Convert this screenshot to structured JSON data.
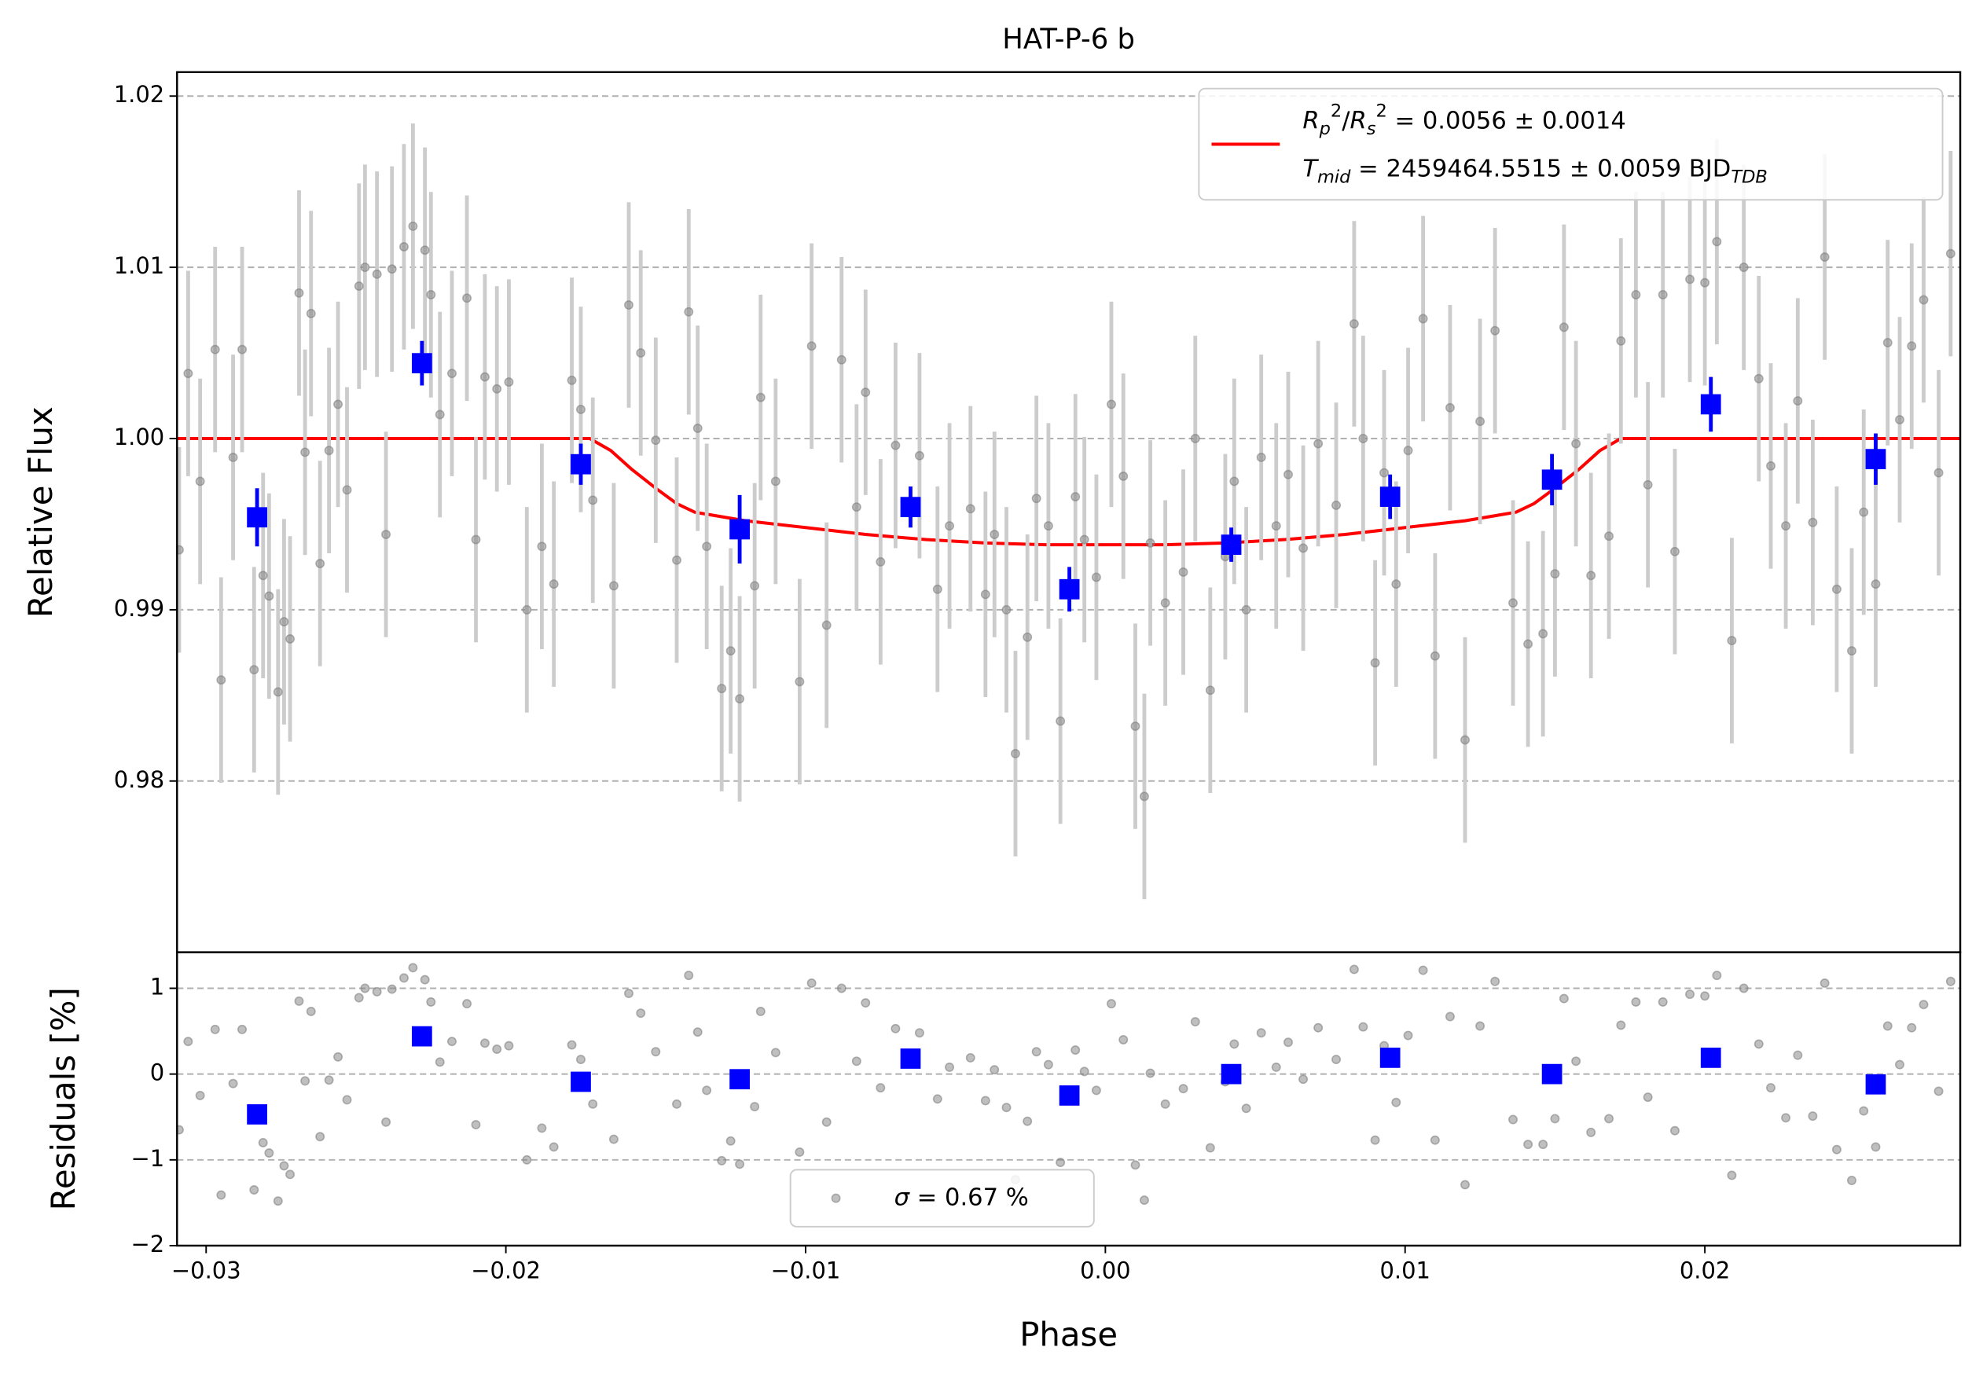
{
  "chart_data": [
    {
      "type": "errorbar",
      "title": "HAT-P-6 b",
      "ylabel": "Relative Flux",
      "xlim": [
        -0.03097,
        0.02852
      ],
      "ylim": [
        0.97,
        1.0214
      ],
      "yticks": [
        0.98,
        0.99,
        {
          "value": 1.0,
          "label": "1.00"
        },
        1.01,
        1.02
      ],
      "grid": true,
      "legend": "upper right",
      "series": [
        {
          "type": "line",
          "color": "#ff0000",
          "name": [
            [
              {
                "text": "R",
                "style": "i"
              },
              {
                "text": "p",
                "style": "si"
              },
              {
                "text": "2",
                "style": "sup"
              },
              {
                "text": "/",
                "style": "n"
              },
              {
                "text": "R",
                "style": "i"
              },
              {
                "text": "s",
                "style": "si"
              },
              {
                "text": "2",
                "style": "sup"
              },
              {
                "text": " = 0.0056 ± 0.0014",
                "style": "n"
              }
            ],
            [
              {
                "text": "T",
                "style": "i"
              },
              {
                "text": "mid",
                "style": "si"
              },
              {
                "text": " = 2459464.5515 ± 0.0059 BJD",
                "style": "n"
              },
              {
                "text": "TDB",
                "style": "si"
              }
            ]
          ],
          "x": [
            -0.031,
            -0.0172,
            -0.0165,
            -0.0158,
            -0.015,
            -0.0143,
            -0.0137,
            -0.012,
            -0.01,
            -0.008,
            -0.006,
            -0.004,
            -0.002,
            0.0,
            0.002,
            0.004,
            0.006,
            0.008,
            0.01,
            0.012,
            0.0137,
            0.0143,
            0.015,
            0.0158,
            0.0165,
            0.0172,
            0.0286
          ],
          "values": [
            1.0,
            1.0,
            0.9993,
            0.9982,
            0.9971,
            0.9962,
            0.9957,
            0.9952,
            0.9948,
            0.9944,
            0.9941,
            0.9939,
            0.9938,
            0.9938,
            0.9938,
            0.9939,
            0.9941,
            0.9944,
            0.9948,
            0.9952,
            0.9957,
            0.9962,
            0.9971,
            0.9982,
            0.9993,
            1.0,
            1.0
          ]
        },
        {
          "type": "points",
          "color": "#808080",
          "error": 0.006,
          "x": [
            -0.0309,
            -0.0306,
            -0.0302,
            -0.0297,
            -0.0295,
            -0.0291,
            -0.0288,
            -0.0284,
            -0.0281,
            -0.0279,
            -0.0276,
            -0.0274,
            -0.0272,
            -0.0269,
            -0.0267,
            -0.0265,
            -0.0262,
            -0.0259,
            -0.0256,
            -0.0253,
            -0.0249,
            -0.0247,
            -0.0243,
            -0.024,
            -0.0238,
            -0.0234,
            -0.0231,
            -0.0227,
            -0.0225,
            -0.0222,
            -0.0218,
            -0.0213,
            -0.021,
            -0.0207,
            -0.0203,
            -0.0199,
            -0.0193,
            -0.0188,
            -0.0184,
            -0.0178,
            -0.0175,
            -0.0171,
            -0.0164,
            -0.0159,
            -0.0155,
            -0.015,
            -0.0143,
            -0.0139,
            -0.0136,
            -0.0133,
            -0.0128,
            -0.0125,
            -0.0122,
            -0.0117,
            -0.0115,
            -0.011,
            -0.0102,
            -0.0098,
            -0.0093,
            -0.0088,
            -0.0083,
            -0.008,
            -0.0075,
            -0.007,
            -0.0062,
            -0.0056,
            -0.0052,
            -0.0045,
            -0.004,
            -0.0037,
            -0.0033,
            -0.003,
            -0.0026,
            -0.0023,
            -0.0019,
            -0.0015,
            -0.001,
            -0.0007,
            -0.0003,
            0.0002,
            0.0006,
            0.001,
            0.0013,
            0.0015,
            0.002,
            0.0026,
            0.003,
            0.0035,
            0.004,
            0.0043,
            0.0047,
            0.0052,
            0.0057,
            0.0061,
            0.0066,
            0.0071,
            0.0077,
            0.0083,
            0.0086,
            0.009,
            0.0093,
            0.0097,
            0.0101,
            0.0106,
            0.011,
            0.0115,
            0.012,
            0.0125,
            0.013,
            0.0136,
            0.0141,
            0.0146,
            0.015,
            0.0153,
            0.0157,
            0.0162,
            0.0168,
            0.0172,
            0.0177,
            0.0181,
            0.0186,
            0.019,
            0.0195,
            0.02,
            0.0204,
            0.0209,
            0.0213,
            0.0218,
            0.0222,
            0.0227,
            0.0231,
            0.0236,
            0.024,
            0.0244,
            0.0249,
            0.0253,
            0.0257,
            0.0261,
            0.0265,
            0.0269,
            0.0273,
            0.0278,
            0.0282
          ],
          "values": [
            0.9935,
            1.0038,
            0.9975,
            1.0052,
            0.9859,
            0.9989,
            1.0052,
            0.9865,
            0.992,
            0.9908,
            0.9852,
            0.9893,
            0.9883,
            1.0085,
            0.9992,
            1.0073,
            0.9927,
            0.9993,
            1.002,
            0.997,
            1.0089,
            1.01,
            1.0096,
            0.9944,
            1.0099,
            1.0112,
            1.0124,
            1.011,
            1.0084,
            1.0014,
            1.0038,
            1.0082,
            0.9941,
            1.0036,
            1.0029,
            1.0033,
            0.99,
            0.9937,
            0.9915,
            1.0034,
            1.0017,
            0.9964,
            0.9914,
            1.0078,
            1.005,
            0.9999,
            0.9929,
            1.0074,
            1.0006,
            0.9937,
            0.9854,
            0.9876,
            0.9848,
            0.9914,
            1.0024,
            0.9975,
            0.9858,
            1.0054,
            0.9891,
            1.0046,
            0.996,
            1.0027,
            0.9928,
            0.9996,
            0.999,
            0.9912,
            0.9949,
            0.9959,
            0.9909,
            0.9944,
            0.99,
            0.9816,
            0.9884,
            0.9965,
            0.9949,
            0.9835,
            0.9966,
            0.9941,
            0.9919,
            1.002,
            0.9978,
            0.9832,
            0.9791,
            0.9939,
            0.9904,
            0.9922,
            1.0,
            0.9853,
            0.9931,
            0.9975,
            0.99,
            0.9989,
            0.9949,
            0.9979,
            0.9936,
            0.9997,
            0.9961,
            1.0067,
            1.0,
            0.9869,
            0.998,
            0.9915,
            0.9993,
            1.007,
            0.9873,
            1.0018,
            0.9824,
            1.001,
            1.0063,
            0.9904,
            0.988,
            0.9886,
            0.9921,
            1.0065,
            0.9997,
            0.992,
            0.9943,
            1.0057,
            1.0084,
            0.9973,
            1.0084,
            0.9934,
            1.0093,
            1.0091,
            1.0115,
            0.9882,
            1.01,
            1.0035,
            0.9984,
            0.9949,
            1.0022,
            0.9951,
            1.0106,
            0.9912,
            0.9876,
            0.9957,
            0.9915,
            1.0056,
            1.0011,
            1.0054,
            1.0081,
            0.998,
            1.0108
          ]
        },
        {
          "type": "binned",
          "color": "#0000ff",
          "x": [
            -0.0283,
            -0.0228,
            -0.0175,
            -0.0122,
            -0.0065,
            -0.0012,
            0.0042,
            0.0095,
            0.0149,
            0.0202,
            0.0257
          ],
          "values": [
            0.9954,
            1.0044,
            0.9985,
            0.9947,
            0.996,
            0.9912,
            0.9938,
            0.9966,
            0.9976,
            1.002,
            0.9988
          ],
          "errors": [
            0.0017,
            0.0013,
            0.0012,
            0.002,
            0.0012,
            0.0013,
            0.001,
            0.0013,
            0.0015,
            0.0016,
            0.0015
          ]
        }
      ]
    },
    {
      "type": "scatter",
      "ylabel": "Residuals [%]",
      "xlabel": "Phase",
      "xlim": [
        -0.03097,
        0.02852
      ],
      "ylim": [
        -2,
        1.42
      ],
      "xticks": [
        {
          "value": -0.03,
          "label": "−0.03"
        },
        {
          "value": -0.02,
          "label": "−0.02"
        },
        {
          "value": -0.01,
          "label": "−0.01"
        },
        {
          "value": 0.0,
          "label": "0.00"
        },
        0.01,
        0.02
      ],
      "yticks": [
        {
          "value": -2,
          "label": "−2"
        },
        {
          "value": -1,
          "label": "−1"
        },
        0,
        1
      ],
      "grid": true,
      "legend": "lower center",
      "series": [
        {
          "type": "points",
          "color": "#808080",
          "name": [
            [
              {
                "text": "σ",
                "style": "i"
              },
              {
                "text": " = 0.67 %",
                "style": "n"
              }
            ]
          ],
          "x": [
            -0.0309,
            -0.0306,
            -0.0302,
            -0.0297,
            -0.0295,
            -0.0291,
            -0.0288,
            -0.0284,
            -0.0281,
            -0.0279,
            -0.0276,
            -0.0274,
            -0.0272,
            -0.0269,
            -0.0267,
            -0.0265,
            -0.0262,
            -0.0259,
            -0.0256,
            -0.0253,
            -0.0249,
            -0.0247,
            -0.0243,
            -0.024,
            -0.0238,
            -0.0234,
            -0.0231,
            -0.0227,
            -0.0225,
            -0.0222,
            -0.0218,
            -0.0213,
            -0.021,
            -0.0207,
            -0.0203,
            -0.0199,
            -0.0193,
            -0.0188,
            -0.0184,
            -0.0178,
            -0.0175,
            -0.0171,
            -0.0164,
            -0.0159,
            -0.0155,
            -0.015,
            -0.0143,
            -0.0139,
            -0.0136,
            -0.0133,
            -0.0128,
            -0.0125,
            -0.0122,
            -0.0117,
            -0.0115,
            -0.011,
            -0.0102,
            -0.0098,
            -0.0093,
            -0.0088,
            -0.0083,
            -0.008,
            -0.0075,
            -0.007,
            -0.0062,
            -0.0056,
            -0.0052,
            -0.0045,
            -0.004,
            -0.0037,
            -0.0033,
            -0.003,
            -0.0026,
            -0.0023,
            -0.0019,
            -0.0015,
            -0.001,
            -0.0007,
            -0.0003,
            0.0002,
            0.0006,
            0.001,
            0.0013,
            0.0015,
            0.002,
            0.0026,
            0.003,
            0.0035,
            0.004,
            0.0043,
            0.0047,
            0.0052,
            0.0057,
            0.0061,
            0.0066,
            0.0071,
            0.0077,
            0.0083,
            0.0086,
            0.009,
            0.0093,
            0.0097,
            0.0101,
            0.0106,
            0.011,
            0.0115,
            0.012,
            0.0125,
            0.013,
            0.0136,
            0.0141,
            0.0146,
            0.015,
            0.0153,
            0.0157,
            0.0162,
            0.0168,
            0.0172,
            0.0177,
            0.0181,
            0.0186,
            0.019,
            0.0195,
            0.02,
            0.0204,
            0.0209,
            0.0213,
            0.0218,
            0.0222,
            0.0227,
            0.0231,
            0.0236,
            0.024,
            0.0244,
            0.0249,
            0.0253,
            0.0257,
            0.0261,
            0.0265,
            0.0269,
            0.0273,
            0.0278,
            0.0282
          ],
          "values": [
            -0.65,
            0.38,
            -0.25,
            0.52,
            -1.41,
            -0.11,
            0.52,
            -1.35,
            -0.8,
            -0.92,
            -1.48,
            -1.07,
            -1.17,
            0.85,
            -0.08,
            0.73,
            -0.73,
            -0.07,
            0.2,
            -0.3,
            0.89,
            1.0,
            0.96,
            -0.56,
            0.99,
            1.12,
            1.24,
            1.1,
            0.84,
            0.14,
            0.38,
            0.82,
            -0.59,
            0.36,
            0.29,
            0.33,
            -1.0,
            -0.63,
            -0.85,
            0.34,
            0.17,
            -0.35,
            -0.76,
            0.94,
            0.71,
            0.26,
            -0.35,
            1.15,
            0.49,
            -0.19,
            -1.01,
            -0.78,
            -1.05,
            -0.38,
            0.73,
            0.25,
            -0.91,
            1.06,
            -0.56,
            1.0,
            0.15,
            0.83,
            -0.16,
            0.53,
            0.48,
            -0.29,
            0.08,
            0.19,
            -0.31,
            0.05,
            -0.39,
            -1.23,
            -0.55,
            0.26,
            0.11,
            -1.03,
            0.28,
            0.03,
            -0.19,
            0.82,
            0.4,
            -1.06,
            -1.47,
            0.01,
            -0.35,
            -0.17,
            0.61,
            -0.86,
            -0.09,
            0.35,
            -0.4,
            0.48,
            0.08,
            0.37,
            -0.06,
            0.54,
            0.17,
            1.22,
            0.55,
            -0.77,
            0.33,
            -0.33,
            0.45,
            1.21,
            -0.77,
            0.67,
            -1.29,
            0.56,
            1.08,
            -0.53,
            -0.82,
            -0.82,
            -0.52,
            0.88,
            0.15,
            -0.68,
            -0.52,
            0.57,
            0.84,
            -0.27,
            0.84,
            -0.66,
            0.93,
            0.91,
            1.15,
            -1.18,
            1.0,
            0.35,
            -0.16,
            -0.51,
            0.22,
            -0.49,
            1.06,
            -0.88,
            -1.24,
            -0.43,
            -0.85,
            0.56,
            0.11,
            0.54,
            0.81,
            -0.2,
            1.08
          ]
        },
        {
          "type": "binned",
          "color": "#0000ff",
          "x": [
            -0.0283,
            -0.0228,
            -0.0175,
            -0.0122,
            -0.0065,
            -0.0012,
            0.0042,
            0.0095,
            0.0149,
            0.0202,
            0.0257
          ],
          "values": [
            -0.47,
            0.44,
            -0.09,
            -0.06,
            0.18,
            -0.25,
            0.0,
            0.19,
            0.0,
            0.19,
            -0.12
          ]
        }
      ]
    }
  ]
}
